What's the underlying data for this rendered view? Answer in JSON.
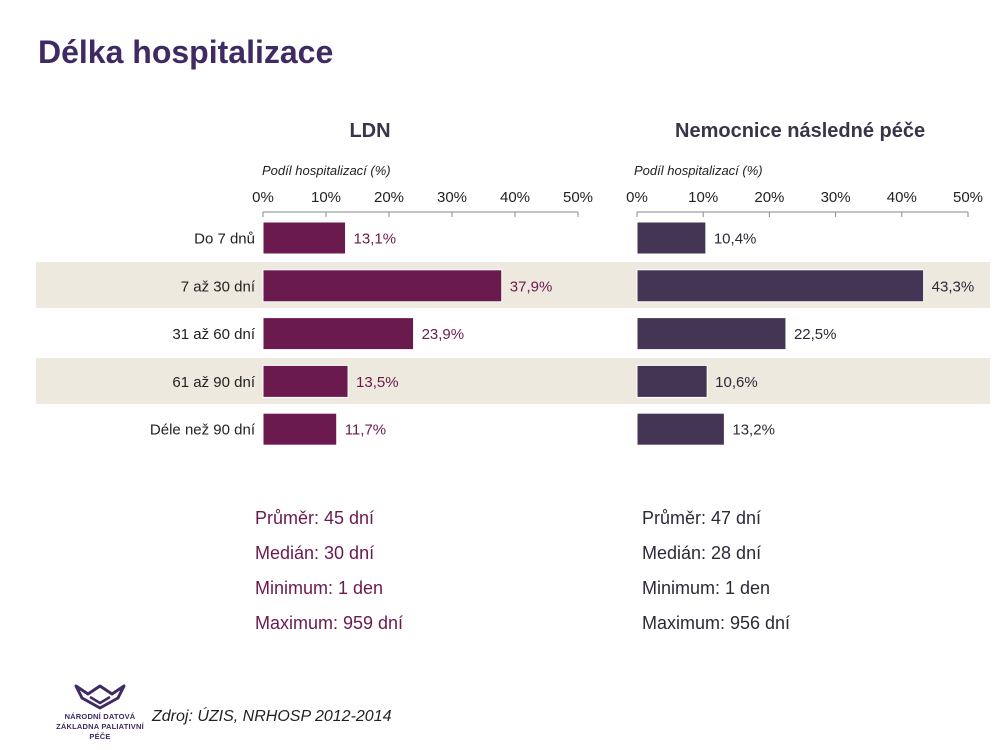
{
  "title": "Délka hospitalizace",
  "colors": {
    "title": "#3f2a63",
    "ldn": "#6b1a4e",
    "nnp": "#443555",
    "band": "#ede9df",
    "axis": "#8a8a8a"
  },
  "chart_data": [
    {
      "type": "bar",
      "orientation": "horizontal",
      "title": "LDN",
      "xlabel": "Podíl hospitalizací (%)",
      "xlim": [
        0,
        50
      ],
      "ticks": [
        "0%",
        "10%",
        "20%",
        "30%",
        "40%",
        "50%"
      ],
      "categories": [
        "Do 7 dnů",
        "7 až 30 dní",
        "31 až 60 dní",
        "61 až 90 dní",
        "Déle než 90 dní"
      ],
      "values": [
        13.1,
        37.9,
        23.9,
        13.5,
        11.7
      ],
      "value_labels": [
        "13,1%",
        "37,9%",
        "23,9%",
        "13,5%",
        "11,7%"
      ],
      "color": "#6b1a4e"
    },
    {
      "type": "bar",
      "orientation": "horizontal",
      "title": "Nemocnice následné péče",
      "xlabel": "Podíl hospitalizací (%)",
      "xlim": [
        0,
        50
      ],
      "ticks": [
        "0%",
        "10%",
        "20%",
        "30%",
        "40%",
        "50%"
      ],
      "categories": [
        "Do 7 dnů",
        "7 až 30 dní",
        "31 až 60 dní",
        "61 až 90 dní",
        "Déle než 90 dní"
      ],
      "values": [
        10.4,
        43.3,
        22.5,
        10.6,
        13.2
      ],
      "value_labels": [
        "10,4%",
        "43,3%",
        "22,5%",
        "10,6%",
        "13,2%"
      ],
      "color": "#443555"
    }
  ],
  "stats": {
    "ldn": [
      "Průměr: 45 dní",
      "Medián: 30 dní",
      "Minimum: 1 den",
      "Maximum: 959 dní"
    ],
    "nnp": [
      "Průměr: 47 dní",
      "Medián: 28 dní",
      "Minimum: 1 den",
      "Maximum: 956 dní"
    ]
  },
  "source": "Zdroj: ÚZIS, NRHOSP 2012-2014",
  "logo": {
    "line1": "NÁRODNÍ DATOVÁ",
    "line2": "ZÁKLADNA PALIATIVNÍ PÉČE"
  }
}
